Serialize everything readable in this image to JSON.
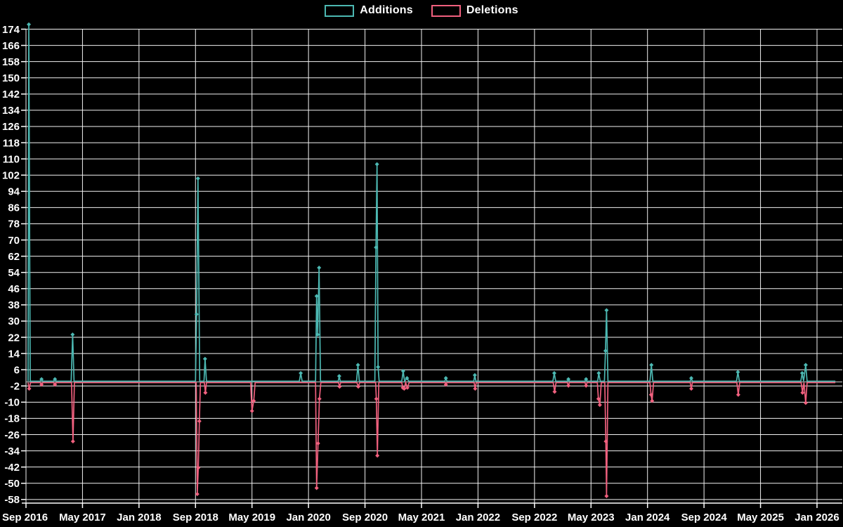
{
  "background_color": "#000000",
  "grid_color": "#f2f2f2",
  "zero_line_color": "#9a9a9a",
  "axis_color": "#ffffff",
  "text_color": "#ffffff",
  "chart_data": {
    "type": "line",
    "title": "",
    "xlabel": "",
    "ylabel": "",
    "legend_position": "top-center",
    "grid": true,
    "marker_shape": "diamond",
    "ylim": [
      -58,
      174
    ],
    "y_tick_step": 8,
    "y_ticks": [
      174,
      166,
      158,
      150,
      142,
      134,
      126,
      118,
      110,
      102,
      94,
      86,
      78,
      70,
      62,
      54,
      46,
      38,
      30,
      22,
      14,
      6,
      -2,
      -10,
      -18,
      -26,
      -34,
      -42,
      -50,
      -58
    ],
    "x_tick_labels": [
      "Sep 2016",
      "May 2017",
      "Jan 2018",
      "Sep 2018",
      "May 2019",
      "Jan 2020",
      "Sep 2020",
      "May 2021",
      "Jan 2022",
      "Sep 2022",
      "May 2023",
      "Jan 2024",
      "Sep 2024",
      "May 2025",
      "Jan 2026"
    ],
    "x_unit": "months_since_Sep_2016",
    "x_tick_months": [
      0,
      8,
      16,
      24,
      32,
      40,
      48,
      56,
      64,
      72,
      80,
      88,
      96,
      104,
      112
    ],
    "x_data_end_month": 114.6,
    "series": [
      {
        "name": "Additions",
        "color": "#4cb8b2",
        "points": [
          [
            0.3,
            0
          ],
          [
            0.4,
            176
          ],
          [
            0.6,
            0
          ],
          [
            2.0,
            0
          ],
          [
            2.2,
            1
          ],
          [
            2.4,
            0
          ],
          [
            3.9,
            0
          ],
          [
            4.1,
            1
          ],
          [
            4.3,
            0
          ],
          [
            6.4,
            0
          ],
          [
            6.6,
            23
          ],
          [
            6.8,
            0
          ],
          [
            24.0,
            0
          ],
          [
            24.15,
            33
          ],
          [
            24.35,
            100
          ],
          [
            24.6,
            0
          ],
          [
            25.2,
            0
          ],
          [
            25.35,
            11
          ],
          [
            25.55,
            0
          ],
          [
            38.7,
            0
          ],
          [
            38.9,
            4
          ],
          [
            39.1,
            0
          ],
          [
            41.0,
            0
          ],
          [
            41.15,
            42
          ],
          [
            41.3,
            23
          ],
          [
            41.5,
            56
          ],
          [
            41.7,
            0
          ],
          [
            44.2,
            0
          ],
          [
            44.35,
            2.5
          ],
          [
            44.5,
            0
          ],
          [
            46.8,
            0
          ],
          [
            47.0,
            8
          ],
          [
            47.2,
            0
          ],
          [
            49.4,
            0
          ],
          [
            49.55,
            66
          ],
          [
            49.7,
            107
          ],
          [
            49.85,
            7
          ],
          [
            50.0,
            0
          ],
          [
            53.2,
            0
          ],
          [
            53.4,
            5
          ],
          [
            53.6,
            0
          ],
          [
            53.95,
            1.5
          ],
          [
            54.2,
            0
          ],
          [
            59.3,
            0
          ],
          [
            59.45,
            1.5
          ],
          [
            59.6,
            0
          ],
          [
            63.4,
            0
          ],
          [
            63.55,
            3
          ],
          [
            63.7,
            0
          ],
          [
            74.6,
            0
          ],
          [
            74.8,
            4
          ],
          [
            75.0,
            0
          ],
          [
            76.65,
            0
          ],
          [
            76.8,
            1
          ],
          [
            76.95,
            0
          ],
          [
            79.15,
            0
          ],
          [
            79.3,
            1
          ],
          [
            79.45,
            0
          ],
          [
            80.95,
            0
          ],
          [
            81.1,
            4
          ],
          [
            81.3,
            0
          ],
          [
            81.9,
            0
          ],
          [
            82.05,
            15
          ],
          [
            82.2,
            35
          ],
          [
            82.4,
            0
          ],
          [
            88.35,
            0
          ],
          [
            88.55,
            8
          ],
          [
            88.75,
            0
          ],
          [
            94.05,
            0
          ],
          [
            94.2,
            1.5
          ],
          [
            94.35,
            0
          ],
          [
            100.6,
            0
          ],
          [
            100.8,
            4.5
          ],
          [
            101.0,
            0
          ],
          [
            109.7,
            0
          ],
          [
            109.9,
            4
          ],
          [
            110.1,
            0
          ],
          [
            110.4,
            8
          ],
          [
            110.6,
            0
          ],
          [
            114.6,
            0
          ]
        ]
      },
      {
        "name": "Deletions",
        "color": "#f0607e",
        "points": [
          [
            0.3,
            0
          ],
          [
            0.45,
            -3
          ],
          [
            0.65,
            0
          ],
          [
            2.0,
            0
          ],
          [
            2.2,
            -1
          ],
          [
            2.4,
            0
          ],
          [
            3.9,
            0
          ],
          [
            4.1,
            -1
          ],
          [
            4.3,
            0
          ],
          [
            6.45,
            0
          ],
          [
            6.65,
            -29
          ],
          [
            6.85,
            0
          ],
          [
            24.1,
            0
          ],
          [
            24.25,
            -55
          ],
          [
            24.4,
            -42
          ],
          [
            24.55,
            -19
          ],
          [
            24.7,
            0
          ],
          [
            25.25,
            0
          ],
          [
            25.4,
            -5
          ],
          [
            25.55,
            0
          ],
          [
            31.8,
            0
          ],
          [
            32.0,
            -14
          ],
          [
            32.25,
            -9
          ],
          [
            32.45,
            0
          ],
          [
            41.0,
            0
          ],
          [
            41.15,
            -52
          ],
          [
            41.35,
            -30
          ],
          [
            41.55,
            -8
          ],
          [
            41.75,
            0
          ],
          [
            44.25,
            0
          ],
          [
            44.4,
            -2
          ],
          [
            44.55,
            0
          ],
          [
            46.85,
            0
          ],
          [
            47.05,
            -2
          ],
          [
            47.25,
            0
          ],
          [
            49.5,
            0
          ],
          [
            49.6,
            -8
          ],
          [
            49.75,
            -36
          ],
          [
            49.95,
            0
          ],
          [
            53.2,
            0
          ],
          [
            53.35,
            -2.5
          ],
          [
            53.55,
            -3
          ],
          [
            53.75,
            0
          ],
          [
            54.0,
            -2.5
          ],
          [
            54.25,
            0
          ],
          [
            59.35,
            0
          ],
          [
            59.45,
            -1
          ],
          [
            59.6,
            0
          ],
          [
            63.45,
            0
          ],
          [
            63.6,
            -3
          ],
          [
            63.75,
            0
          ],
          [
            74.65,
            0
          ],
          [
            74.85,
            -4.5
          ],
          [
            75.05,
            0
          ],
          [
            76.65,
            0
          ],
          [
            76.8,
            -1.5
          ],
          [
            76.95,
            0
          ],
          [
            79.15,
            0
          ],
          [
            79.3,
            -1.5
          ],
          [
            79.45,
            0
          ],
          [
            80.9,
            0
          ],
          [
            81.05,
            -8
          ],
          [
            81.25,
            -11
          ],
          [
            81.45,
            0
          ],
          [
            81.95,
            0
          ],
          [
            82.1,
            -29
          ],
          [
            82.2,
            -56
          ],
          [
            82.4,
            0
          ],
          [
            88.35,
            0
          ],
          [
            88.5,
            -6
          ],
          [
            88.65,
            -9
          ],
          [
            88.85,
            0
          ],
          [
            94.05,
            0
          ],
          [
            94.2,
            -3
          ],
          [
            94.35,
            0
          ],
          [
            100.65,
            0
          ],
          [
            100.85,
            -6
          ],
          [
            101.05,
            0
          ],
          [
            109.75,
            0
          ],
          [
            109.95,
            -5
          ],
          [
            110.15,
            0
          ],
          [
            110.4,
            -10
          ],
          [
            110.6,
            0
          ],
          [
            114.6,
            0
          ]
        ]
      }
    ]
  }
}
